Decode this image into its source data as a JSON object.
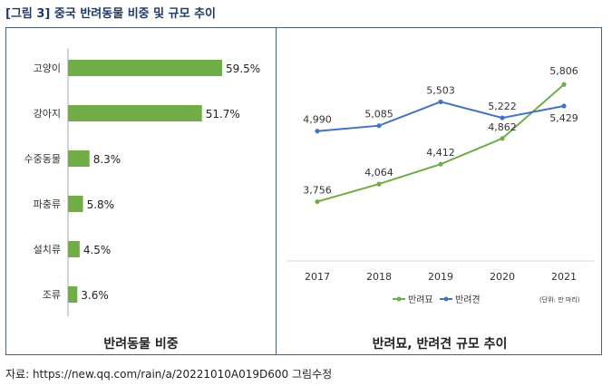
{
  "figure_title": "[그림 3] 중국 반려동물 비중 및 규모 추이",
  "source_note": "자료: https://new.qq.com/rain/a/20221010A019D600 그림수정",
  "colors": {
    "accent_green": "#70ad47",
    "accent_blue": "#4472c4",
    "frame": "#4a5f7a",
    "title": "#1f3a68"
  },
  "chart_data": [
    {
      "type": "bar",
      "orientation": "horizontal",
      "title": "반려동물 비중",
      "categories": [
        "고양이",
        "강아지",
        "수중동물",
        "파충류",
        "설치류",
        "조류"
      ],
      "values": [
        59.5,
        51.7,
        8.3,
        5.8,
        4.5,
        3.6
      ],
      "value_labels": [
        "59.5%",
        "51.7%",
        "8.3%",
        "5.8%",
        "4.5%",
        "3.6%"
      ],
      "unit": "%",
      "xlim": [
        0,
        70
      ],
      "grid": false
    },
    {
      "type": "line",
      "title": "반려묘, 반려견 규모 추이",
      "x": [
        "2017",
        "2018",
        "2019",
        "2020",
        "2021"
      ],
      "series": [
        {
          "name": "반려묘",
          "color": "#70ad47",
          "values": [
            3756,
            4064,
            4412,
            4862,
            5806
          ],
          "labels": [
            "3,756",
            "4,064",
            "4,412",
            "4,862",
            "5,806"
          ]
        },
        {
          "name": "반려견",
          "color": "#4472c4",
          "values": [
            4990,
            5085,
            5503,
            5222,
            5429
          ],
          "labels": [
            "4,990",
            "5,085",
            "5,503",
            "5,222",
            "5,429"
          ]
        }
      ],
      "unit_note": "(단위: 만 마리)",
      "ylim": [
        3400,
        6000
      ],
      "legend_position": "bottom",
      "grid": false
    }
  ]
}
